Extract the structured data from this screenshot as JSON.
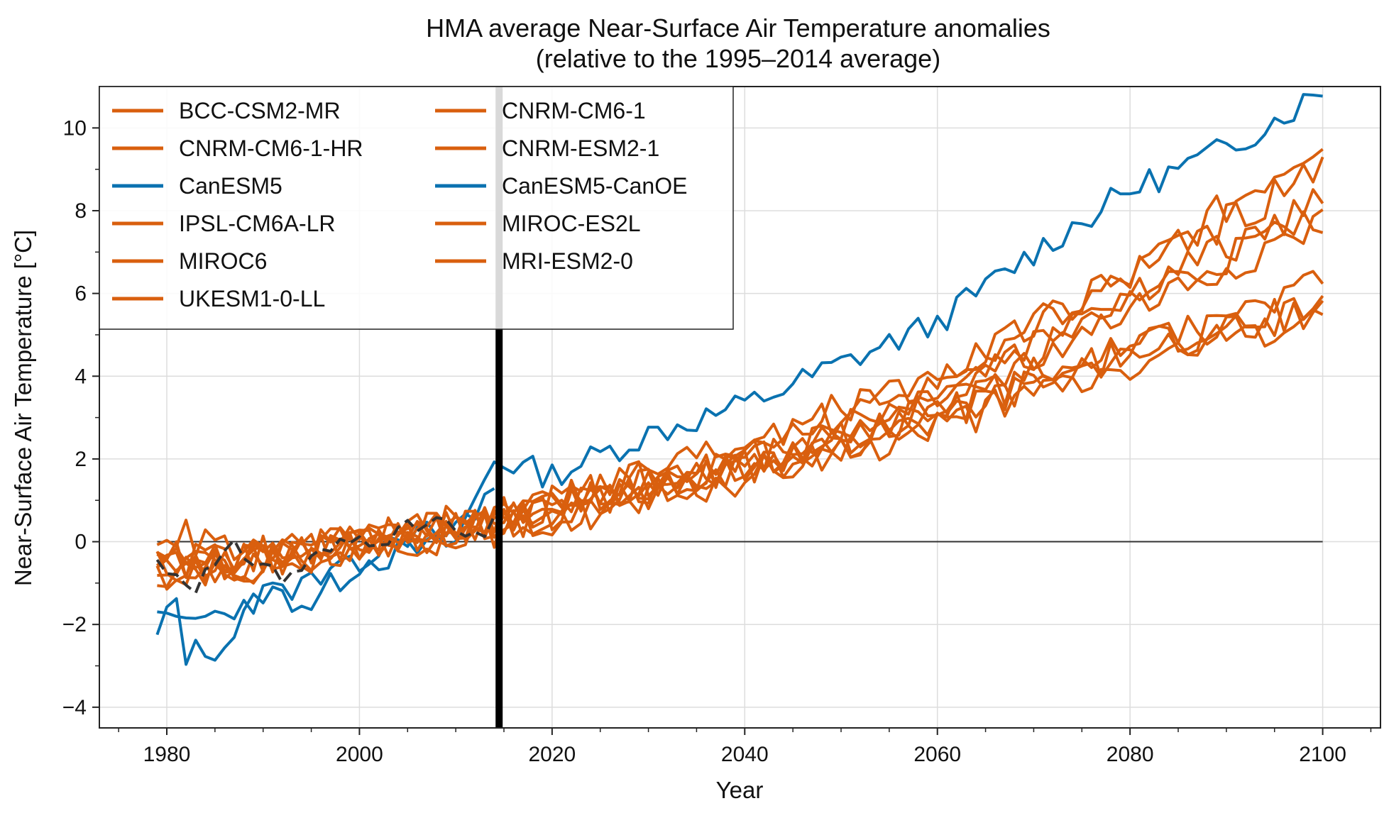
{
  "chart_data": {
    "type": "line",
    "title": "HMA average Near-Surface Air Temperature anomalies",
    "subtitle": "(relative to the 1995–2014 average)",
    "xlabel": "Year",
    "ylabel": "Near-Surface Air Temperature [°C]",
    "xlim": [
      1973,
      2106
    ],
    "ylim": [
      -4.5,
      11
    ],
    "x_ticks": [
      "1980",
      "2000",
      "2020",
      "2040",
      "2060",
      "2080",
      "2100"
    ],
    "x_tick_values": [
      1980,
      2000,
      2020,
      2040,
      2060,
      2080,
      2100
    ],
    "y_ticks": [
      "−4",
      "−2",
      "0",
      "2",
      "4",
      "6",
      "8",
      "10"
    ],
    "y_tick_values": [
      -4,
      -2,
      0,
      2,
      4,
      6,
      8,
      10
    ],
    "grid": true,
    "legend_position": "top-left",
    "legend_columns": 2,
    "colors": {
      "orange": "#d95f0e",
      "blue": "#0a72b0",
      "observations": "#333333",
      "reference_line": "#000000"
    },
    "reference_year_marker": 2014.5,
    "zero_line": 0,
    "series": [
      {
        "name": "BCC-CSM2-MR",
        "color": "#d95f0e",
        "anchors": [
          [
            1979,
            -0.6
          ],
          [
            1990,
            -0.5
          ],
          [
            2000,
            0.0
          ],
          [
            2014,
            0.5
          ],
          [
            2020,
            0.8
          ],
          [
            2040,
            1.8
          ],
          [
            2060,
            3.0
          ],
          [
            2080,
            4.6
          ],
          [
            2100,
            5.7
          ]
        ],
        "seed": 11
      },
      {
        "name": "CNRM-CM6-1-HR",
        "color": "#d95f0e",
        "anchors": [
          [
            1979,
            -0.8
          ],
          [
            1990,
            -0.6
          ],
          [
            2000,
            0.0
          ],
          [
            2014,
            0.6
          ],
          [
            2020,
            0.9
          ],
          [
            2040,
            2.0
          ],
          [
            2060,
            3.6
          ],
          [
            2080,
            6.0
          ],
          [
            2100,
            8.2
          ]
        ],
        "seed": 12
      },
      {
        "name": "CanESM5",
        "color": "#0a72b0",
        "anchors": [
          [
            1979,
            -2.3
          ],
          [
            1981,
            -1.4
          ],
          [
            1982,
            -2.7
          ],
          [
            1986,
            -2.5
          ],
          [
            1990,
            -1.2
          ],
          [
            1995,
            -1.5
          ],
          [
            2000,
            -0.5
          ],
          [
            2010,
            0.0
          ],
          [
            2014,
            2.0
          ],
          [
            2020,
            1.6
          ],
          [
            2030,
            2.6
          ],
          [
            2040,
            3.3
          ],
          [
            2050,
            4.3
          ],
          [
            2060,
            5.3
          ],
          [
            2070,
            7.0
          ],
          [
            2080,
            8.5
          ],
          [
            2090,
            9.5
          ],
          [
            2100,
            10.9
          ]
        ],
        "seed": 13
      },
      {
        "name": "IPSL-CM6A-LR",
        "color": "#d95f0e",
        "anchors": [
          [
            1979,
            -0.5
          ],
          [
            1990,
            -0.4
          ],
          [
            2000,
            0.1
          ],
          [
            2014,
            0.4
          ],
          [
            2020,
            0.9
          ],
          [
            2040,
            2.2
          ],
          [
            2060,
            3.9
          ],
          [
            2080,
            6.4
          ],
          [
            2100,
            9.8
          ]
        ],
        "seed": 14
      },
      {
        "name": "MIROC6",
        "color": "#d95f0e",
        "anchors": [
          [
            1979,
            -0.4
          ],
          [
            1990,
            -0.5
          ],
          [
            2000,
            -0.1
          ],
          [
            2014,
            0.3
          ],
          [
            2020,
            0.5
          ],
          [
            2040,
            1.5
          ],
          [
            2060,
            2.8
          ],
          [
            2080,
            4.2
          ],
          [
            2100,
            5.5
          ]
        ],
        "seed": 15
      },
      {
        "name": "UKESM1-0-LL",
        "color": "#d95f0e",
        "anchors": [
          [
            1979,
            0.3
          ],
          [
            1990,
            -0.4
          ],
          [
            2000,
            0.1
          ],
          [
            2014,
            0.6
          ],
          [
            2020,
            1.0
          ],
          [
            2040,
            2.4
          ],
          [
            2060,
            4.0
          ],
          [
            2080,
            6.5
          ],
          [
            2100,
            9.0
          ]
        ],
        "seed": 16
      },
      {
        "name": "CNRM-CM6-1",
        "color": "#d95f0e",
        "anchors": [
          [
            1979,
            -0.6
          ],
          [
            1990,
            -0.4
          ],
          [
            2000,
            0.0
          ],
          [
            2014,
            0.5
          ],
          [
            2020,
            0.8
          ],
          [
            2040,
            1.9
          ],
          [
            2060,
            3.3
          ],
          [
            2080,
            5.9
          ],
          [
            2100,
            7.9
          ]
        ],
        "seed": 21
      },
      {
        "name": "CNRM-ESM2-1",
        "color": "#d95f0e",
        "anchors": [
          [
            1979,
            -0.7
          ],
          [
            1990,
            -0.5
          ],
          [
            2000,
            0.0
          ],
          [
            2014,
            0.4
          ],
          [
            2020,
            0.7
          ],
          [
            2040,
            1.8
          ],
          [
            2060,
            3.2
          ],
          [
            2080,
            5.6
          ],
          [
            2100,
            7.7
          ]
        ],
        "seed": 22
      },
      {
        "name": "CanESM5-CanOE",
        "color": "#0a72b0",
        "anchors": [
          [
            1979,
            -2.0
          ],
          [
            1985,
            -1.8
          ],
          [
            1990,
            -1.3
          ],
          [
            1995,
            -1.0
          ],
          [
            2000,
            -0.6
          ],
          [
            2005,
            0.2
          ],
          [
            2010,
            0.3
          ],
          [
            2014,
            1.3
          ]
        ],
        "seed": 23
      },
      {
        "name": "MIROC-ES2L",
        "color": "#d95f0e",
        "anchors": [
          [
            1979,
            -0.5
          ],
          [
            1990,
            -0.6
          ],
          [
            2000,
            -0.1
          ],
          [
            2014,
            0.4
          ],
          [
            2020,
            0.6
          ],
          [
            2040,
            1.7
          ],
          [
            2060,
            3.0
          ],
          [
            2080,
            4.6
          ],
          [
            2100,
            6.2
          ]
        ],
        "seed": 24
      },
      {
        "name": "MRI-ESM2-0",
        "color": "#d95f0e",
        "anchors": [
          [
            1979,
            -0.4
          ],
          [
            1990,
            -0.3
          ],
          [
            2000,
            0.0
          ],
          [
            2014,
            0.5
          ],
          [
            2020,
            0.8
          ],
          [
            2040,
            1.9
          ],
          [
            2060,
            3.1
          ],
          [
            2080,
            4.9
          ],
          [
            2100,
            5.6
          ]
        ],
        "seed": 25
      },
      {
        "color": "#333333",
        "dashed": true,
        "anchors": [
          [
            1979,
            -0.5
          ],
          [
            1983,
            -1.0
          ],
          [
            1987,
            -0.2
          ],
          [
            1990,
            -0.5
          ],
          [
            1992,
            -0.9
          ],
          [
            1996,
            -0.3
          ],
          [
            2000,
            0.1
          ],
          [
            2004,
            0.2
          ],
          [
            2008,
            0.5
          ],
          [
            2012,
            0.0
          ],
          [
            2014,
            0.4
          ]
        ],
        "seed": 31
      }
    ]
  }
}
